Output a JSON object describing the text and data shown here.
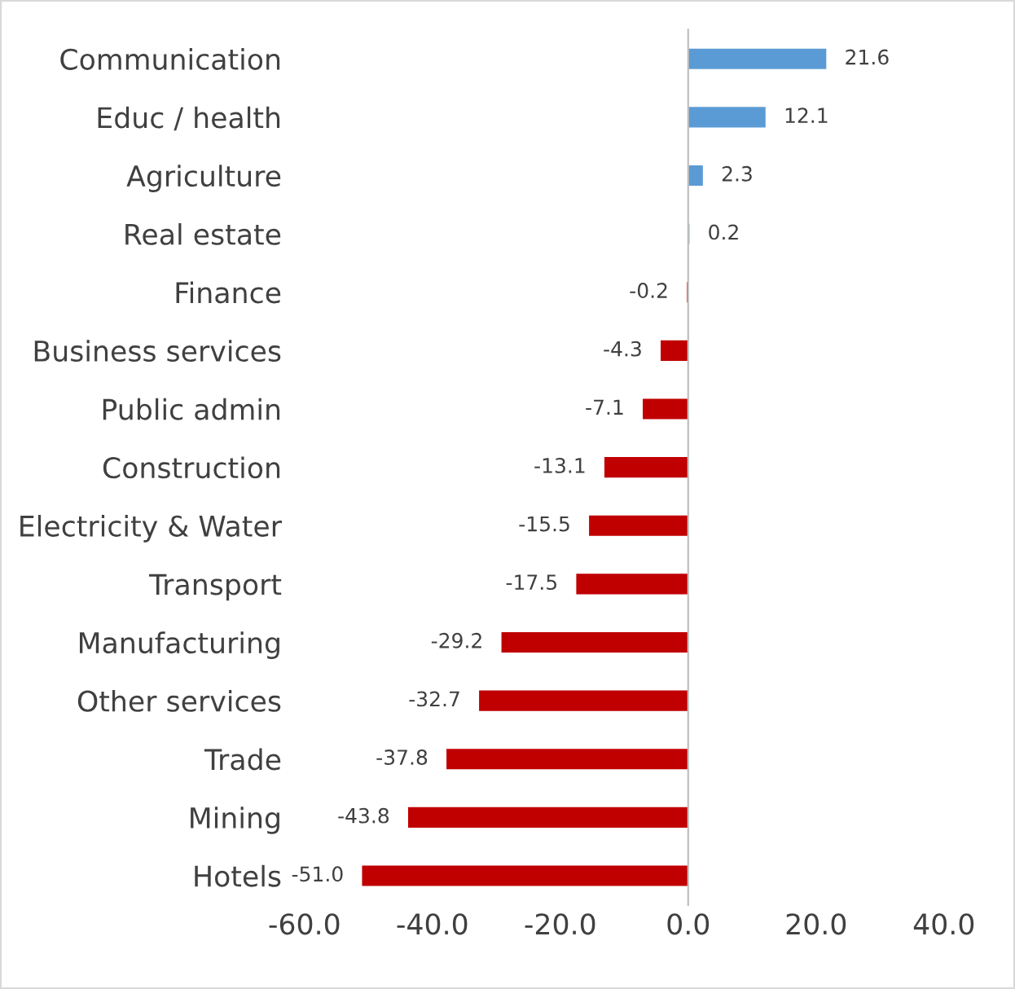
{
  "chart_data": {
    "type": "bar",
    "orientation": "horizontal",
    "categories": [
      "Communication",
      "Educ / health",
      "Agriculture",
      "Real estate",
      "Finance",
      "Business services",
      "Public admin",
      "Construction",
      "Electricity & Water",
      "Transport",
      "Manufacturing",
      "Other services",
      "Trade",
      "Mining",
      "Hotels"
    ],
    "values": [
      21.6,
      12.1,
      2.3,
      0.2,
      -0.2,
      -4.3,
      -7.1,
      -13.1,
      -15.5,
      -17.5,
      -29.2,
      -32.7,
      -37.8,
      -43.8,
      -51.0
    ],
    "value_labels": [
      "21.6",
      "12.1",
      "2.3",
      "0.2",
      "-0.2",
      "-4.3",
      "-7.1",
      "-13.1",
      "-15.5",
      "-17.5",
      "-29.2",
      "-32.7",
      "-37.8",
      "-43.8",
      "-51.0"
    ],
    "colors": [
      "#5b9bd5",
      "#5b9bd5",
      "#5b9bd5",
      "#5b9bd5",
      "#c00000",
      "#c00000",
      "#c00000",
      "#c00000",
      "#c00000",
      "#c00000",
      "#c00000",
      "#c00000",
      "#c00000",
      "#c00000",
      "#c00000"
    ],
    "xlim": [
      -60,
      40
    ],
    "xticks": [
      {
        "value": -60,
        "label": "-60.0"
      },
      {
        "value": -40,
        "label": "-40.0"
      },
      {
        "value": -20,
        "label": "-20.0"
      },
      {
        "value": 0,
        "label": "0.0"
      },
      {
        "value": 20,
        "label": "20.0"
      },
      {
        "value": 40,
        "label": "40.0"
      }
    ],
    "legend": false
  }
}
